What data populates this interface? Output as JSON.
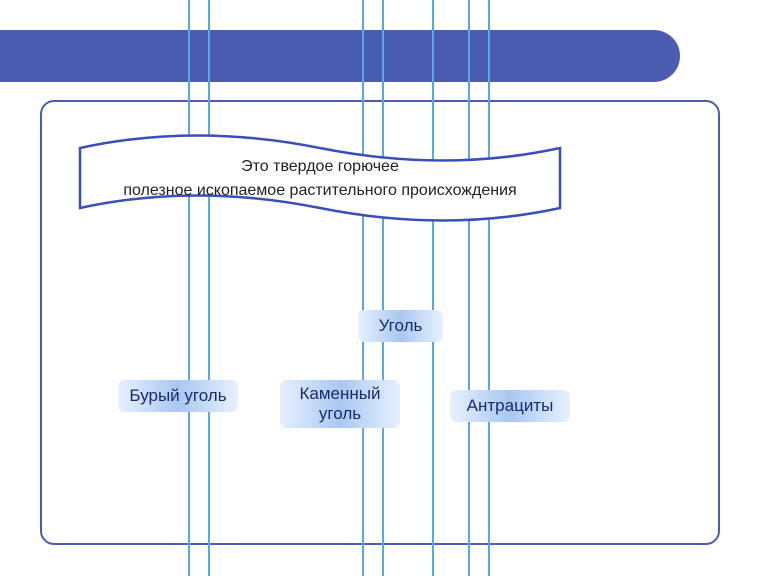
{
  "title": "Уголь",
  "banner": {
    "line1": "Это твердое горючее",
    "line2": "полезное ископаемое растительного происхождения",
    "border_color": "#3b4fb8",
    "fill_color": "#ffffff"
  },
  "nodes": {
    "main": {
      "label": "Уголь"
    },
    "child1": {
      "label": "Бурый уголь"
    },
    "child2": {
      "label": "Каменный уголь"
    },
    "child3": {
      "label": "Антрациты"
    }
  },
  "pill_gradient": {
    "left": "#e8f0ff",
    "mid": "#a8c8f0",
    "right": "#e8f0ff"
  },
  "colors": {
    "header": "#4a5db0",
    "frame": "#4a5db0",
    "title": "#4a5db0",
    "text": "#1a2a6c",
    "vline": "#5aa8e0"
  },
  "vlines": [
    188,
    208,
    362,
    382,
    432,
    468,
    488
  ]
}
